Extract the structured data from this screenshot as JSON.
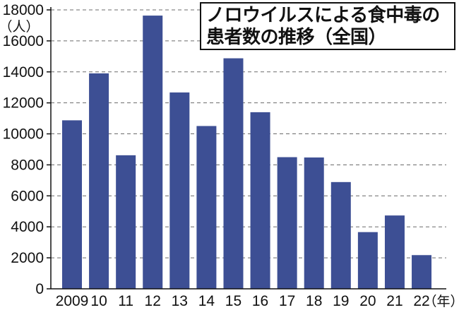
{
  "chart_data": {
    "type": "bar",
    "title_lines": [
      "ノロウイルスによる食中毒の",
      "患者数の推移（全国）"
    ],
    "categories": [
      "2009",
      "10",
      "11",
      "12",
      "13",
      "14",
      "15",
      "16",
      "17",
      "18",
      "19",
      "20",
      "21",
      "22"
    ],
    "values": [
      10874,
      13904,
      8619,
      17632,
      12672,
      10506,
      14876,
      11397,
      8496,
      8475,
      6889,
      3660,
      4733,
      2175
    ],
    "ylabel": "（人）",
    "xlabel": "（年）",
    "ylim": [
      0,
      18000
    ],
    "yticks": [
      0,
      2000,
      4000,
      6000,
      8000,
      10000,
      12000,
      14000,
      16000,
      18000
    ],
    "grid": true,
    "bar_color": "#3d4f94",
    "grid_color": "#6b6b6b"
  }
}
